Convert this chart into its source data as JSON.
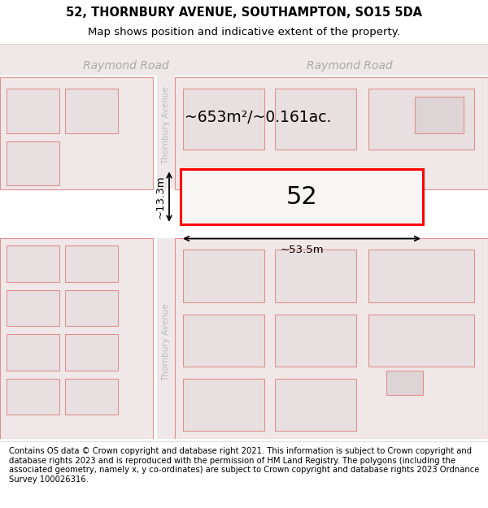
{
  "title_line1": "52, THORNBURY AVENUE, SOUTHAMPTON, SO15 5DA",
  "title_line2": "Map shows position and indicative extent of the property.",
  "footer_text": "Contains OS data © Crown copyright and database right 2021. This information is subject to Crown copyright and database rights 2023 and is reproduced with the permission of HM Land Registry. The polygons (including the associated geometry, namely x, y co-ordinates) are subject to Crown copyright and database rights 2023 Ordnance Survey 100026316.",
  "map_bg": "#f5efef",
  "road_bg": "#eee8e8",
  "pink_fill": "#f2eaea",
  "pink_stroke": "#e09090",
  "gray_fill": "#e8e0e0",
  "highlight_fill": "#f8f5f5",
  "highlight_stroke": "#ff0000",
  "road_label_color": "#aaaaaa",
  "street_label_color": "#bbbbbb",
  "area_text": "~653m²/~0.161ac.",
  "number_text": "52",
  "dim_width": "~53.5m",
  "dim_height": "~13.3m",
  "title_fontsize": 10.5,
  "subtitle_fontsize": 9.5,
  "footer_fontsize": 7.2,
  "raymond_road_label": "Raymond Road",
  "thornbury_label": "Thornbury Avenue"
}
